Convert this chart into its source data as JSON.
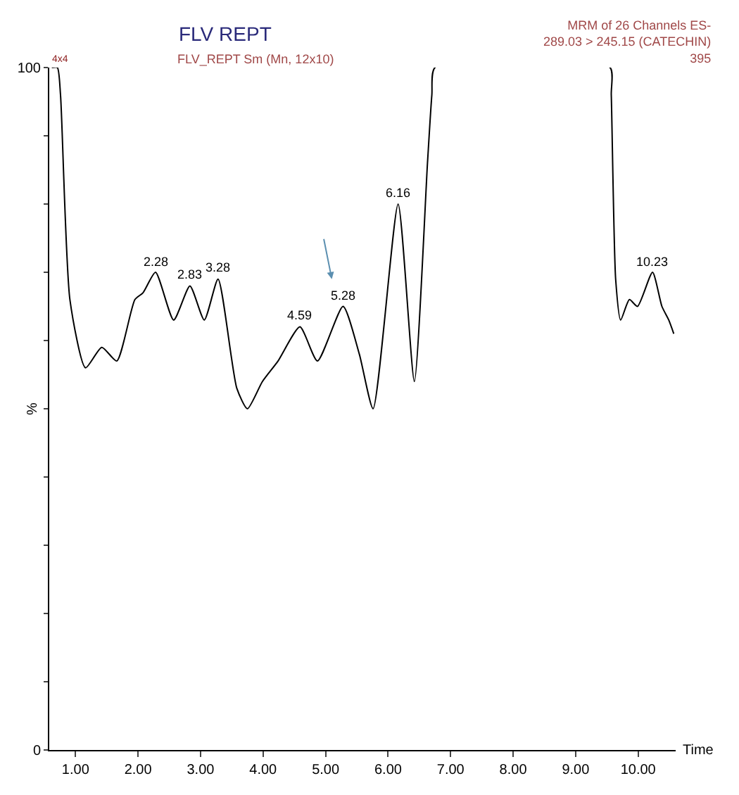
{
  "chart_data": {
    "type": "line",
    "title": "FLV REPT",
    "subtitle": "FLV_REPT Sm (Mn, 12x10)",
    "xlabel": "Time",
    "ylabel": "%",
    "x": [
      0.62,
      0.71,
      0.76,
      0.91,
      1.16,
      1.42,
      1.66,
      1.95,
      2.08,
      2.28,
      2.57,
      2.83,
      3.06,
      3.28,
      3.58,
      3.75,
      3.99,
      4.24,
      4.59,
      4.87,
      5.28,
      5.54,
      5.76,
      6.16,
      6.42,
      6.63,
      6.7,
      6.75,
      9.55,
      9.57,
      9.64,
      9.72,
      9.86,
      9.99,
      10.23,
      10.38,
      10.49,
      10.57
    ],
    "values": [
      100,
      100,
      96,
      66,
      56,
      59,
      57,
      66,
      67,
      70,
      63,
      68,
      63,
      69,
      53,
      50,
      54,
      57,
      62,
      57,
      65,
      58,
      50,
      80,
      54,
      86,
      96,
      100,
      100,
      96,
      69,
      63,
      66,
      65,
      70,
      65,
      63,
      61
    ],
    "color": "#000000",
    "xlim": [
      0.58,
      10.6
    ],
    "xticks": [
      {
        "value": 1,
        "label": "1.00"
      },
      {
        "value": 2,
        "label": "2.00"
      },
      {
        "value": 3,
        "label": "3.00"
      },
      {
        "value": 4,
        "label": "4.00"
      },
      {
        "value": 5,
        "label": "5.00"
      },
      {
        "value": 6,
        "label": "6.00"
      },
      {
        "value": 7,
        "label": "7.00"
      },
      {
        "value": 8,
        "label": "8.00"
      },
      {
        "value": 9,
        "label": "9.00"
      },
      {
        "value": 10,
        "label": "10.00"
      }
    ],
    "ylim": [
      0,
      100
    ],
    "yticks": [
      0,
      {
        "value": 10,
        "label": null
      },
      {
        "value": 20,
        "label": null
      },
      {
        "value": 30,
        "label": null
      },
      {
        "value": 40,
        "label": null
      },
      {
        "value": 50,
        "label": null
      },
      {
        "value": 60,
        "label": null
      },
      {
        "value": 70,
        "label": null
      },
      {
        "value": 80,
        "label": null
      },
      {
        "value": 90,
        "label": null
      },
      100
    ],
    "annotations": [
      {
        "text": "2.28",
        "x": 2.28,
        "y": 70
      },
      {
        "text": "2.83",
        "x": 2.83,
        "y": 68
      },
      {
        "text": "3.28",
        "x": 3.28,
        "y": 69
      },
      {
        "text": "4.59",
        "x": 4.59,
        "y": 62
      },
      {
        "text": "5.28",
        "x": 5.28,
        "y": 65
      },
      {
        "text": "6.16",
        "x": 6.16,
        "y": 80
      },
      {
        "text": "10.23",
        "x": 10.23,
        "y": 70
      },
      "MRM of 26 Channels ES-\n289.03 > 245.15 (CATECHIN)\n395",
      "4x4"
    ],
    "legend": false,
    "marker": "none",
    "line_style": "solid"
  }
}
